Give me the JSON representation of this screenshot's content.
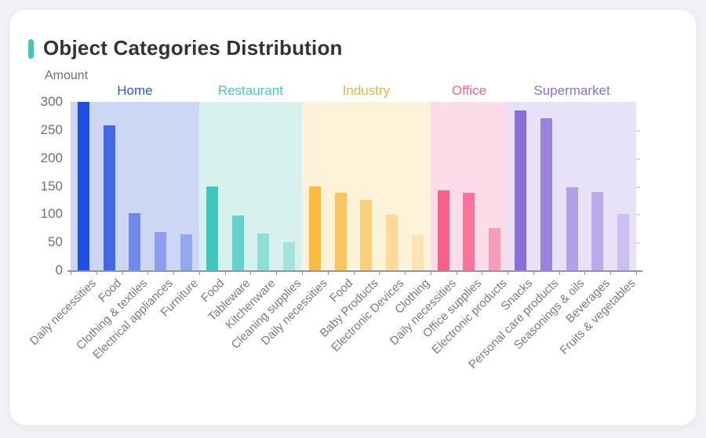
{
  "page": {
    "title": "Object Categories Distribution",
    "accent_color": "#3ec6b9",
    "card_background": "#ffffff",
    "page_background": "#eff1f4"
  },
  "chart_data": {
    "type": "bar",
    "title": "Object Categories Distribution",
    "xlabel": "",
    "ylabel": "Amount",
    "ylim": [
      0,
      300
    ],
    "yticks": [
      0,
      50,
      100,
      150,
      200,
      250,
      300
    ],
    "grid": false,
    "legend_position": "none",
    "axis_text_color": "#6e7079",
    "groups": [
      {
        "name": "Home",
        "label_color": "#2d55e2",
        "band_color": "#ccd7f4",
        "categories": [
          "Daily necessities",
          "Food",
          "Clothing & textiles",
          "Electrical appliances",
          "Furniture"
        ],
        "values": [
          300,
          258,
          102,
          69,
          64
        ],
        "bar_colors": [
          "#1d4fe3",
          "#4169e6",
          "#7289ec",
          "#8c9ef0",
          "#96a7f1"
        ]
      },
      {
        "name": "Restaurant",
        "label_color": "#41c9bd",
        "band_color": "#d7f2ee",
        "categories": [
          "Food",
          "Tableware",
          "Kitchenware",
          "Cleaning supplies"
        ],
        "values": [
          149,
          97,
          65,
          50
        ],
        "bar_colors": [
          "#3ec8bb",
          "#63d2c8",
          "#8eded6",
          "#a2e3dc"
        ]
      },
      {
        "name": "Industry",
        "label_color": "#eab345",
        "band_color": "#fdf3d9",
        "categories": [
          "Daily necessities",
          "Food",
          "Baby Products",
          "Electronic Devices",
          "Clothing"
        ],
        "values": [
          150,
          138,
          126,
          99,
          63
        ],
        "bar_colors": [
          "#fbbc40",
          "#fbc55e",
          "#fccf79",
          "#fdda97",
          "#fde3b2"
        ]
      },
      {
        "name": "Office",
        "label_color": "#f5648f",
        "band_color": "#fcdce8",
        "categories": [
          "Daily necessities",
          "Office supplies",
          "Electronic products"
        ],
        "values": [
          142,
          138,
          75
        ],
        "bar_colors": [
          "#f8608b",
          "#f8749b",
          "#fa9cb9"
        ]
      },
      {
        "name": "Supermarket",
        "label_color": "#8a6edb",
        "band_color": "#e7e2f8",
        "categories": [
          "Snacks",
          "Personal care products",
          "Seasonings & oils",
          "Beverages",
          "Fruits & vegetables"
        ],
        "values": [
          285,
          271,
          148,
          140,
          101
        ],
        "bar_colors": [
          "#8a6edb",
          "#9a81e0",
          "#b2a0e8",
          "#bba9ea",
          "#ccc0f0"
        ]
      }
    ]
  }
}
